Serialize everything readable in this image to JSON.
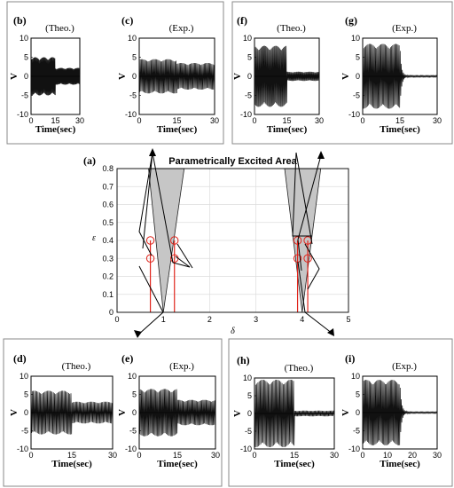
{
  "chart_data": {
    "main": {
      "type": "area",
      "panel_label": "(a)",
      "title": "Parametrically Excited Area",
      "xlabel": "δ",
      "ylabel": "ε",
      "xlim": [
        0,
        5
      ],
      "ylim": [
        0,
        0.8
      ],
      "xticks": [
        "0",
        "1",
        "2",
        "3",
        "4",
        "5"
      ],
      "yticks": [
        "0",
        "0.1",
        "0.2",
        "0.3",
        "0.4",
        "0.5",
        "0.6",
        "0.7",
        "0.8"
      ],
      "grid": true,
      "regions": [
        {
          "name": "tongue-1",
          "x": [
            0.68,
            1.0,
            1.45
          ],
          "y": [
            0.8,
            0,
            0.8
          ]
        },
        {
          "name": "tongue-2",
          "x": [
            3.62,
            4.0,
            4.4
          ],
          "y": [
            0.8,
            0,
            0.8
          ]
        }
      ],
      "vlines": [
        0.72,
        1.24,
        3.9,
        4.12
      ],
      "circles": [
        {
          "x": 0.72,
          "y": 0.4
        },
        {
          "x": 1.24,
          "y": 0.4
        },
        {
          "x": 0.72,
          "y": 0.3
        },
        {
          "x": 1.24,
          "y": 0.3
        },
        {
          "x": 3.9,
          "y": 0.4
        },
        {
          "x": 4.12,
          "y": 0.4
        },
        {
          "x": 3.9,
          "y": 0.3
        },
        {
          "x": 4.12,
          "y": 0.3
        }
      ]
    },
    "panels": [
      {
        "label": "(b)",
        "title": "(Theo.)",
        "xlabel": "Time(sec)",
        "ylabel": "V",
        "xlim": [
          0,
          30
        ],
        "ylim": [
          -10,
          10
        ],
        "xticks": [
          "0",
          "15",
          "30"
        ],
        "yticks": [
          "-10",
          "-5",
          "0",
          "5",
          "10"
        ],
        "amp_first": 5,
        "amp_second": 2.2,
        "switch": 15,
        "decay": false
      },
      {
        "label": "(c)",
        "title": "(Exp.)",
        "xlabel": "Time(sec)",
        "ylabel": "V",
        "xlim": [
          0,
          30
        ],
        "ylim": [
          -10,
          10
        ],
        "xticks": [
          "0",
          "15",
          "30"
        ],
        "yticks": [
          "-10",
          "-5",
          "0",
          "5",
          "10"
        ],
        "amp_first": 4.5,
        "amp_second": 3.5,
        "switch": 15,
        "decay": false
      },
      {
        "label": "(f)",
        "title": "(Theo.)",
        "xlabel": "Time(sec)",
        "ylabel": "V",
        "xlim": [
          0,
          30
        ],
        "ylim": [
          -10,
          10
        ],
        "xticks": [
          "0",
          "15",
          "30"
        ],
        "yticks": [
          "-10",
          "-5",
          "0",
          "5",
          "10"
        ],
        "amp_first": 8,
        "amp_second": 1.2,
        "switch": 15,
        "decay": false
      },
      {
        "label": "(g)",
        "title": "(Exp.)",
        "xlabel": "Time(sec)",
        "ylabel": "V",
        "xlim": [
          0,
          30
        ],
        "ylim": [
          -10,
          10
        ],
        "xticks": [
          "0",
          "15",
          "30"
        ],
        "yticks": [
          "-10",
          "-5",
          "0",
          "5",
          "10"
        ],
        "amp_first": 8.5,
        "amp_second": 0.2,
        "switch": 15,
        "decay": true
      },
      {
        "label": "(d)",
        "title": "(Theo.)",
        "xlabel": "Time(sec)",
        "ylabel": "V",
        "xlim": [
          0,
          30
        ],
        "ylim": [
          -10,
          10
        ],
        "xticks": [
          "0",
          "15",
          "30"
        ],
        "yticks": [
          "-10",
          "-5",
          "0",
          "5",
          "10"
        ],
        "amp_first": 6,
        "amp_second": 3,
        "switch": 15,
        "decay": false
      },
      {
        "label": "(e)",
        "title": "(Exp.)",
        "xlabel": "Time(sec)",
        "ylabel": "V",
        "xlim": [
          0,
          30
        ],
        "ylim": [
          -10,
          10
        ],
        "xticks": [
          "0",
          "15",
          "30"
        ],
        "yticks": [
          "-10",
          "-5",
          "0",
          "5",
          "10"
        ],
        "amp_first": 6.5,
        "amp_second": 3.5,
        "switch": 15,
        "decay": false
      },
      {
        "label": "(h)",
        "title": "(Theo.)",
        "xlabel": "Time(sec)",
        "ylabel": "V",
        "xlim": [
          0,
          30
        ],
        "ylim": [
          -10,
          10
        ],
        "xticks": [
          "0",
          "15",
          "30"
        ],
        "yticks": [
          "-10",
          "-5",
          "0",
          "5",
          "10"
        ],
        "amp_first": 9.5,
        "amp_second": 0.8,
        "switch": 15,
        "decay": false
      },
      {
        "label": "(i)",
        "title": "(Exp.)",
        "xlabel": "Time(sec)",
        "ylabel": "V",
        "xlim": [
          0,
          30
        ],
        "ylim": [
          -10,
          10
        ],
        "xticks": [
          "0",
          "10",
          "20",
          "30"
        ],
        "yticks": [
          "-10",
          "-5",
          "0",
          "5",
          "10"
        ],
        "amp_first": 9,
        "amp_second": 0.2,
        "switch": 15,
        "decay": true
      }
    ]
  }
}
